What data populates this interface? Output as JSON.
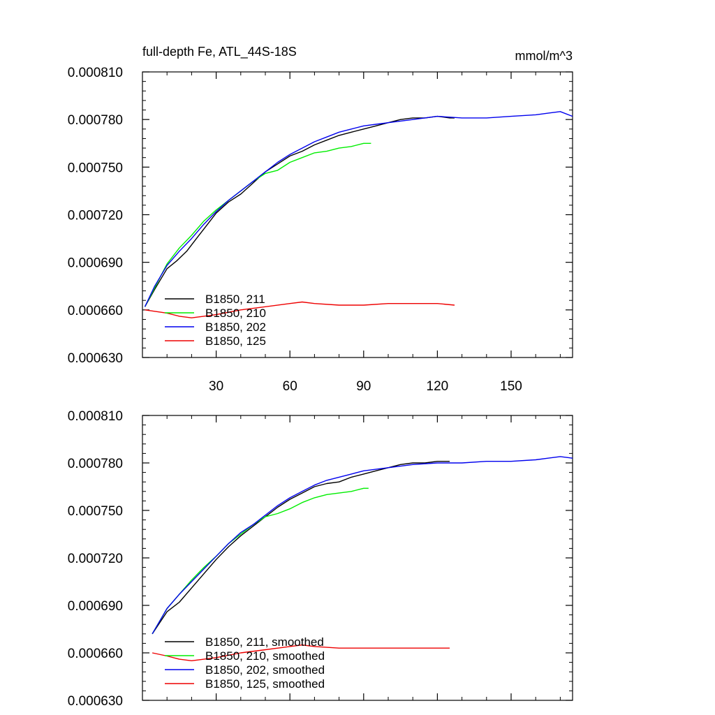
{
  "chart_data": [
    {
      "type": "line",
      "title": "full-depth Fe, ATL_44S-18S",
      "units": "mmol/m^3",
      "xlim": [
        0,
        175
      ],
      "ylim": [
        0.00063,
        0.00081
      ],
      "x_ticks": [
        30,
        60,
        90,
        120,
        150
      ],
      "y_ticks": [
        "0.000630",
        "0.000660",
        "0.000690",
        "0.000720",
        "0.000750",
        "0.000780",
        "0.000810"
      ],
      "legend_position": "bottom-left",
      "series": [
        {
          "name": "B1850, 211",
          "color": "#000000",
          "points": [
            [
              1,
              0.000662
            ],
            [
              5,
              0.000673
            ],
            [
              10,
              0.000686
            ],
            [
              14,
              0.000691
            ],
            [
              18,
              0.000697
            ],
            [
              22,
              0.000705
            ],
            [
              26,
              0.000713
            ],
            [
              30,
              0.000721
            ],
            [
              35,
              0.000728
            ],
            [
              40,
              0.000733
            ],
            [
              45,
              0.00074
            ],
            [
              50,
              0.000747
            ],
            [
              55,
              0.000752
            ],
            [
              60,
              0.000757
            ],
            [
              65,
              0.00076
            ],
            [
              70,
              0.000764
            ],
            [
              75,
              0.000767
            ],
            [
              80,
              0.00077
            ],
            [
              85,
              0.000772
            ],
            [
              90,
              0.000774
            ],
            [
              95,
              0.000776
            ],
            [
              100,
              0.000778
            ],
            [
              105,
              0.00078
            ],
            [
              110,
              0.000781
            ],
            [
              115,
              0.000781
            ],
            [
              120,
              0.000782
            ],
            [
              125,
              0.000781
            ],
            [
              127,
              0.000781
            ]
          ]
        },
        {
          "name": "B1850, 210",
          "color": "#00ee00",
          "points": [
            [
              1,
              0.000662
            ],
            [
              5,
              0.000674
            ],
            [
              10,
              0.000689
            ],
            [
              15,
              0.000699
            ],
            [
              20,
              0.000707
            ],
            [
              25,
              0.000716
            ],
            [
              30,
              0.000723
            ],
            [
              35,
              0.000729
            ],
            [
              40,
              0.000735
            ],
            [
              45,
              0.000741
            ],
            [
              50,
              0.000746
            ],
            [
              55,
              0.000748
            ],
            [
              60,
              0.000753
            ],
            [
              65,
              0.000756
            ],
            [
              70,
              0.000759
            ],
            [
              75,
              0.00076
            ],
            [
              80,
              0.000762
            ],
            [
              85,
              0.000763
            ],
            [
              90,
              0.000765
            ],
            [
              93,
              0.000765
            ]
          ]
        },
        {
          "name": "B1850, 202",
          "color": "#0000ee",
          "points": [
            [
              1,
              0.000662
            ],
            [
              5,
              0.000675
            ],
            [
              10,
              0.000688
            ],
            [
              15,
              0.000697
            ],
            [
              20,
              0.000705
            ],
            [
              25,
              0.000714
            ],
            [
              30,
              0.000722
            ],
            [
              35,
              0.000729
            ],
            [
              40,
              0.000735
            ],
            [
              45,
              0.000741
            ],
            [
              50,
              0.000747
            ],
            [
              55,
              0.000753
            ],
            [
              60,
              0.000758
            ],
            [
              65,
              0.000762
            ],
            [
              70,
              0.000766
            ],
            [
              75,
              0.000769
            ],
            [
              80,
              0.000772
            ],
            [
              85,
              0.000774
            ],
            [
              90,
              0.000776
            ],
            [
              95,
              0.000777
            ],
            [
              100,
              0.000778
            ],
            [
              110,
              0.00078
            ],
            [
              120,
              0.000782
            ],
            [
              130,
              0.000781
            ],
            [
              140,
              0.000781
            ],
            [
              150,
              0.000782
            ],
            [
              160,
              0.000783
            ],
            [
              165,
              0.000784
            ],
            [
              170,
              0.000785
            ],
            [
              175,
              0.000782
            ]
          ]
        },
        {
          "name": "B1850, 125",
          "color": "#ee0000",
          "points": [
            [
              1,
              0.00066
            ],
            [
              10,
              0.000658
            ],
            [
              15,
              0.000656
            ],
            [
              20,
              0.000655
            ],
            [
              25,
              0.000656
            ],
            [
              30,
              0.000657
            ],
            [
              40,
              0.00066
            ],
            [
              50,
              0.000662
            ],
            [
              60,
              0.000664
            ],
            [
              65,
              0.000665
            ],
            [
              70,
              0.000664
            ],
            [
              80,
              0.000663
            ],
            [
              90,
              0.000663
            ],
            [
              100,
              0.000664
            ],
            [
              110,
              0.000664
            ],
            [
              120,
              0.000664
            ],
            [
              127,
              0.000663
            ]
          ]
        }
      ]
    },
    {
      "type": "line",
      "xlim": [
        0,
        175
      ],
      "ylim": [
        0.00063,
        0.00081
      ],
      "x_ticks": [
        30,
        60,
        90,
        120,
        150
      ],
      "y_ticks": [
        "0.000630",
        "0.000660",
        "0.000690",
        "0.000720",
        "0.000750",
        "0.000780",
        "0.000810"
      ],
      "legend_position": "bottom-left",
      "series": [
        {
          "name": "B1850, 211, smoothed",
          "color": "#000000",
          "points": [
            [
              4,
              0.000672
            ],
            [
              10,
              0.000686
            ],
            [
              15,
              0.000692
            ],
            [
              20,
              0.000701
            ],
            [
              25,
              0.00071
            ],
            [
              30,
              0.000719
            ],
            [
              35,
              0.000727
            ],
            [
              40,
              0.000734
            ],
            [
              45,
              0.00074
            ],
            [
              50,
              0.000746
            ],
            [
              55,
              0.000752
            ],
            [
              60,
              0.000757
            ],
            [
              65,
              0.000761
            ],
            [
              70,
              0.000765
            ],
            [
              75,
              0.000767
            ],
            [
              80,
              0.000768
            ],
            [
              85,
              0.000771
            ],
            [
              90,
              0.000773
            ],
            [
              95,
              0.000775
            ],
            [
              100,
              0.000777
            ],
            [
              105,
              0.000779
            ],
            [
              110,
              0.00078
            ],
            [
              115,
              0.00078
            ],
            [
              120,
              0.000781
            ],
            [
              125,
              0.000781
            ]
          ]
        },
        {
          "name": "B1850, 210, smoothed",
          "color": "#00ee00",
          "points": [
            [
              4,
              0.000672
            ],
            [
              10,
              0.000688
            ],
            [
              15,
              0.000697
            ],
            [
              20,
              0.000706
            ],
            [
              25,
              0.000714
            ],
            [
              30,
              0.000721
            ],
            [
              35,
              0.000729
            ],
            [
              40,
              0.000735
            ],
            [
              45,
              0.000741
            ],
            [
              50,
              0.000746
            ],
            [
              55,
              0.000748
            ],
            [
              60,
              0.000751
            ],
            [
              65,
              0.000755
            ],
            [
              70,
              0.000758
            ],
            [
              75,
              0.00076
            ],
            [
              80,
              0.000761
            ],
            [
              85,
              0.000762
            ],
            [
              90,
              0.000764
            ],
            [
              92,
              0.000764
            ]
          ]
        },
        {
          "name": "B1850, 202, smoothed",
          "color": "#0000ee",
          "points": [
            [
              4,
              0.000672
            ],
            [
              10,
              0.000688
            ],
            [
              15,
              0.000697
            ],
            [
              20,
              0.000705
            ],
            [
              25,
              0.000713
            ],
            [
              30,
              0.000721
            ],
            [
              35,
              0.000729
            ],
            [
              40,
              0.000736
            ],
            [
              45,
              0.000741
            ],
            [
              50,
              0.000747
            ],
            [
              55,
              0.000753
            ],
            [
              60,
              0.000758
            ],
            [
              65,
              0.000762
            ],
            [
              70,
              0.000766
            ],
            [
              75,
              0.000769
            ],
            [
              80,
              0.000771
            ],
            [
              85,
              0.000773
            ],
            [
              90,
              0.000775
            ],
            [
              95,
              0.000776
            ],
            [
              100,
              0.000777
            ],
            [
              110,
              0.000779
            ],
            [
              120,
              0.00078
            ],
            [
              130,
              0.00078
            ],
            [
              140,
              0.000781
            ],
            [
              150,
              0.000781
            ],
            [
              160,
              0.000782
            ],
            [
              165,
              0.000783
            ],
            [
              170,
              0.000784
            ],
            [
              175,
              0.000783
            ]
          ]
        },
        {
          "name": "B1850, 125, smoothed",
          "color": "#ee0000",
          "points": [
            [
              4,
              0.00066
            ],
            [
              10,
              0.000658
            ],
            [
              15,
              0.000656
            ],
            [
              20,
              0.000655
            ],
            [
              25,
              0.000656
            ],
            [
              30,
              0.000657
            ],
            [
              40,
              0.00066
            ],
            [
              50,
              0.000662
            ],
            [
              60,
              0.000664
            ],
            [
              65,
              0.000665
            ],
            [
              70,
              0.000664
            ],
            [
              80,
              0.000663
            ],
            [
              90,
              0.000663
            ],
            [
              100,
              0.000663
            ],
            [
              110,
              0.000663
            ],
            [
              120,
              0.000663
            ],
            [
              125,
              0.000663
            ]
          ]
        }
      ]
    }
  ]
}
